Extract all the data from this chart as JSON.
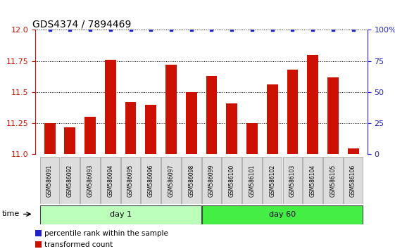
{
  "title": "GDS4374 / 7894469",
  "samples": [
    "GSM586091",
    "GSM586092",
    "GSM586093",
    "GSM586094",
    "GSM586095",
    "GSM586096",
    "GSM586097",
    "GSM586098",
    "GSM586099",
    "GSM586100",
    "GSM586101",
    "GSM586102",
    "GSM586103",
    "GSM586104",
    "GSM586105",
    "GSM586106"
  ],
  "bar_values": [
    11.25,
    11.22,
    11.3,
    11.76,
    11.42,
    11.4,
    11.72,
    11.5,
    11.63,
    11.41,
    11.25,
    11.56,
    11.68,
    11.8,
    11.62,
    11.05
  ],
  "percentile_values_pct": [
    100,
    100,
    100,
    100,
    100,
    100,
    100,
    100,
    100,
    100,
    100,
    100,
    100,
    100,
    100,
    100
  ],
  "bar_color": "#CC1100",
  "percentile_color": "#2222CC",
  "ylim_left": [
    11.0,
    12.0
  ],
  "ylim_right": [
    0,
    100
  ],
  "yticks_left": [
    11.0,
    11.25,
    11.5,
    11.75,
    12.0
  ],
  "yticks_right": [
    0,
    25,
    50,
    75,
    100
  ],
  "groups": [
    {
      "label": "day 1",
      "start": 0,
      "end": 8,
      "color": "#BBFFBB"
    },
    {
      "label": "day 60",
      "start": 8,
      "end": 16,
      "color": "#44EE44"
    }
  ],
  "xlabel_time": "time",
  "legend_items": [
    {
      "label": "transformed count",
      "color": "#CC1100"
    },
    {
      "label": "percentile rank within the sample",
      "color": "#2222CC"
    }
  ],
  "tick_label_bg": "#DDDDDD",
  "title_fontsize": 10,
  "bar_width": 0.55
}
